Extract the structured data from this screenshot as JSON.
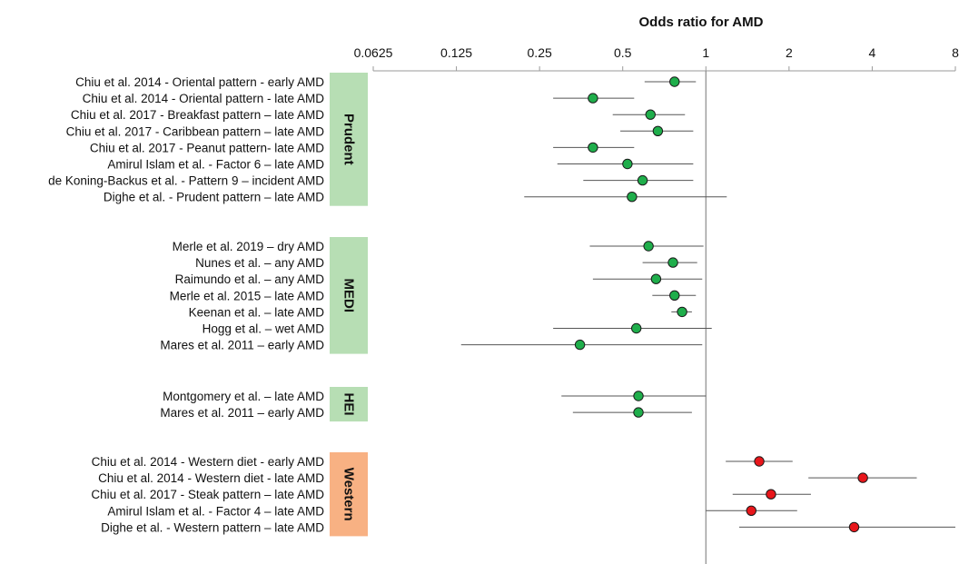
{
  "chart_data": {
    "type": "forest",
    "title": "Odds ratio for AMD",
    "x_scale": "log2",
    "xlim": [
      0.0625,
      8
    ],
    "x_ticks": [
      "0.0625",
      "0.125",
      "0.25",
      "0.5",
      "1",
      "2",
      "4",
      "8"
    ],
    "reference_line": 1,
    "colors": {
      "protective": "#1fae4b",
      "harmful": "#e8161b",
      "healthy_group_bg": "#b7deb4",
      "western_group_bg": "#f8b183"
    },
    "groups": [
      {
        "name": "Prudent",
        "color": "#b7deb4",
        "marker_color": "#1fae4b",
        "studies": [
          {
            "label": "Chiu et al. 2014 - Oriental pattern - early AMD",
            "or": 0.77,
            "lo": 0.6,
            "hi": 0.92
          },
          {
            "label": "Chiu et al. 2014 - Oriental pattern - late AMD",
            "or": 0.39,
            "lo": 0.28,
            "hi": 0.55
          },
          {
            "label": "Chiu et al. 2017 - Breakfast pattern – late AMD",
            "or": 0.63,
            "lo": 0.46,
            "hi": 0.84
          },
          {
            "label": "Chiu et al. 2017 - Caribbean pattern – late AMD",
            "or": 0.67,
            "lo": 0.49,
            "hi": 0.9
          },
          {
            "label": "Chiu et al. 2017 - Peanut pattern- late AMD",
            "or": 0.39,
            "lo": 0.28,
            "hi": 0.55
          },
          {
            "label": "Amirul Islam et al. - Factor 6 – late AMD",
            "or": 0.52,
            "lo": 0.29,
            "hi": 0.9
          },
          {
            "label": "de Koning-Backus et al. - Pattern 9 – incident AMD",
            "or": 0.59,
            "lo": 0.36,
            "hi": 0.9
          },
          {
            "label": "Dighe et al. - Prudent pattern – late AMD",
            "or": 0.54,
            "lo": 0.22,
            "hi": 1.19
          }
        ]
      },
      {
        "name": "MEDI",
        "color": "#b7deb4",
        "marker_color": "#1fae4b",
        "studies": [
          {
            "label": "Merle et al. 2019 – dry AMD",
            "or": 0.62,
            "lo": 0.38,
            "hi": 0.98
          },
          {
            "label": "Nunes et al. – any AMD",
            "or": 0.76,
            "lo": 0.59,
            "hi": 0.93
          },
          {
            "label": "Raimundo et al. – any AMD",
            "or": 0.66,
            "lo": 0.39,
            "hi": 0.97
          },
          {
            "label": "Merle et al. 2015 – late AMD",
            "or": 0.77,
            "lo": 0.64,
            "hi": 0.92
          },
          {
            "label": "Keenan et al. – late AMD",
            "or": 0.82,
            "lo": 0.75,
            "hi": 0.89
          },
          {
            "label": "Hogg et al. – wet AMD",
            "or": 0.56,
            "lo": 0.28,
            "hi": 1.05
          },
          {
            "label": "Mares et al. 2011 – early AMD",
            "or": 0.35,
            "lo": 0.13,
            "hi": 0.97
          }
        ]
      },
      {
        "name": "HEI",
        "color": "#b7deb4",
        "marker_color": "#1fae4b",
        "studies": [
          {
            "label": "Montgomery et al. – late AMD",
            "or": 0.57,
            "lo": 0.3,
            "hi": 1.0
          },
          {
            "label": "Mares et al. 2011 – early AMD",
            "or": 0.57,
            "lo": 0.33,
            "hi": 0.89
          }
        ]
      },
      {
        "name": "Western",
        "color": "#f8b183",
        "marker_color": "#e8161b",
        "studies": [
          {
            "label": "Chiu et al. 2014 - Western diet - early AMD",
            "or": 1.56,
            "lo": 1.18,
            "hi": 2.06
          },
          {
            "label": "Chiu et al. 2014 - Western diet - late AMD",
            "or": 3.7,
            "lo": 2.35,
            "hi": 5.8
          },
          {
            "label": "Chiu et al. 2017 - Steak pattern – late AMD",
            "or": 1.72,
            "lo": 1.25,
            "hi": 2.4
          },
          {
            "label": "Amirul Islam et al. - Factor 4 – late AMD",
            "or": 1.46,
            "lo": 1.0,
            "hi": 2.14
          },
          {
            "label": "Dighe et al. - Western pattern – late AMD",
            "or": 3.44,
            "lo": 1.32,
            "hi": 8.0
          }
        ]
      }
    ]
  }
}
